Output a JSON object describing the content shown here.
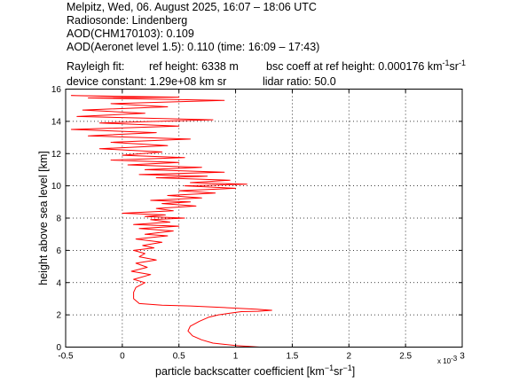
{
  "header": {
    "line1": "Melpitz, Wed, 06. August 2025, 16:07 – 18:06 UTC",
    "line2": "Radiosonde: Lindenberg",
    "line3": "AOD(CHM170103): 0.109",
    "line4": "AOD(Aeronet level 1.5): 0.110   (time: 16:09 – 17:43)",
    "rayleigh_fit": "Rayleigh fit:",
    "ref_height": "ref height: 6338 m",
    "bsc_coeff_prefix": "bsc coeff at ref height: 0.000176 km",
    "device_constant": "device constant: 1.29e+08 km sr",
    "lidar_ratio": "lidar ratio: 50.0"
  },
  "units": {
    "minus_one": "−1",
    "exp_minus_one": "-1",
    "km": "km",
    "sr": "sr"
  },
  "chart_data": {
    "type": "line",
    "xlabel_prefix": "particle backscatter coefficient [km",
    "xlabel_suffix": "]",
    "ylabel": "height above sea level [km]",
    "x_multiplier": "x 10",
    "x_multiplier_exp": "-3",
    "xlim": [
      -0.5,
      3
    ],
    "ylim": [
      0,
      16
    ],
    "x_ticks": [
      "-0.5",
      "0",
      "0.5",
      "1",
      "1.5",
      "2",
      "2.5",
      "3"
    ],
    "y_ticks": [
      "0",
      "2",
      "4",
      "6",
      "8",
      "10",
      "12",
      "14",
      "16"
    ],
    "grid": true,
    "line_color": "#ff0000",
    "series": [
      {
        "values_note": "x in units of 1e-3 km^-1 sr^-1, y in km",
        "x": [
          1.21,
          1.0,
          0.8,
          0.7,
          0.62,
          0.58,
          0.6,
          0.68,
          0.76,
          0.85,
          0.95,
          1.0,
          1.05,
          1.2,
          1.32,
          1.18,
          0.9,
          0.6,
          0.35,
          0.15,
          0.1,
          0.1,
          0.12,
          0.2,
          0.1,
          0.25,
          0.08,
          0.22,
          0.12,
          0.3,
          0.15,
          0.2,
          0.1,
          0.28,
          0.18,
          0.35,
          0.12,
          0.4,
          0.2,
          0.45,
          0.15,
          0.5,
          0.1,
          0.42,
          0.25,
          0.55,
          0.2,
          0.38,
          0.0,
          0.45,
          0.3,
          0.65,
          0.35,
          0.6,
          0.25,
          0.7,
          0.4,
          0.82,
          0.5,
          1.0,
          0.55,
          1.1,
          0.6,
          0.95,
          0.3,
          0.75,
          0.15,
          0.9,
          0.2,
          0.7,
          0.05,
          0.5,
          -0.1,
          0.55,
          0.0,
          0.35,
          -0.2,
          0.4,
          -0.1,
          0.6,
          -0.3,
          0.3,
          -0.45,
          0.5,
          -0.2,
          0.8,
          -0.4,
          0.2,
          -0.35,
          0.4,
          -0.1,
          0.9,
          -0.3,
          0.5,
          -0.45,
          0.3
        ],
        "y": [
          0.0,
          0.1,
          0.25,
          0.45,
          0.7,
          1.0,
          1.3,
          1.6,
          1.85,
          2.0,
          2.1,
          2.15,
          2.2,
          2.22,
          2.28,
          2.35,
          2.45,
          2.55,
          2.6,
          2.7,
          3.0,
          3.4,
          3.7,
          4.0,
          4.2,
          4.5,
          4.7,
          4.95,
          5.2,
          5.4,
          5.6,
          5.8,
          6.0,
          6.15,
          6.3,
          6.5,
          6.7,
          6.9,
          7.0,
          7.2,
          7.35,
          7.5,
          7.6,
          7.75,
          7.9,
          8.0,
          8.1,
          8.2,
          8.3,
          8.45,
          8.6,
          8.75,
          8.9,
          9.0,
          9.1,
          9.25,
          9.4,
          9.55,
          9.7,
          9.85,
          10.0,
          10.1,
          10.2,
          10.35,
          10.5,
          10.6,
          10.7,
          10.85,
          11.0,
          11.15,
          11.3,
          11.45,
          11.6,
          11.75,
          11.9,
          12.1,
          12.3,
          12.5,
          12.7,
          12.9,
          13.1,
          13.3,
          13.5,
          13.7,
          13.9,
          14.1,
          14.3,
          14.5,
          14.7,
          14.9,
          15.1,
          15.3,
          15.45,
          15.5,
          15.6,
          15.5
        ]
      }
    ]
  }
}
